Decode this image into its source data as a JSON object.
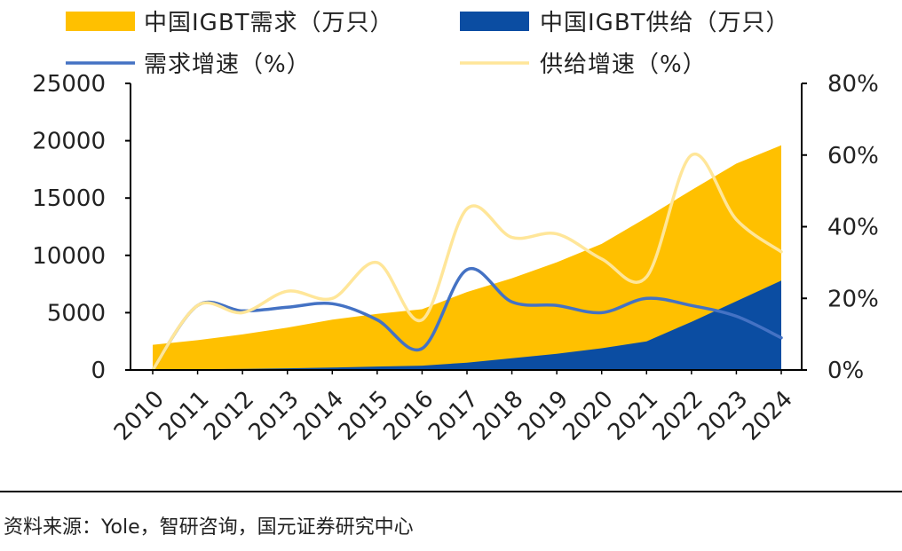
{
  "chart_data": {
    "type": "area",
    "categories": [
      "2010",
      "2011",
      "2012",
      "2013",
      "2014",
      "2015",
      "2016",
      "2017",
      "2018",
      "2019",
      "2020",
      "2021",
      "2022",
      "2023",
      "2024"
    ],
    "y_left": {
      "lim": [
        0,
        25000
      ],
      "ticks": [
        "0",
        "5000",
        "10000",
        "15000",
        "20000",
        "25000"
      ]
    },
    "y_right": {
      "lim": [
        0,
        0.8
      ],
      "ticks": [
        "0%",
        "20%",
        "40%",
        "60%",
        "80%"
      ]
    },
    "series": [
      {
        "name": "中国IGBT需求（万只）",
        "kind": "area",
        "axis": "left",
        "color": "#FFC000",
        "values": [
          2200,
          2600,
          3100,
          3700,
          4400,
          4900,
          5300,
          6800,
          8000,
          9400,
          11000,
          13300,
          15700,
          18000,
          19600
        ]
      },
      {
        "name": "中国IGBT供给（万只）",
        "kind": "area",
        "axis": "left",
        "color": "#0B4DA2",
        "values": [
          50,
          70,
          100,
          150,
          210,
          300,
          380,
          640,
          1020,
          1420,
          1900,
          2500,
          4200,
          6000,
          7800
        ]
      },
      {
        "name": "需求增速（%）",
        "kind": "line",
        "axis": "right",
        "color": "#4472C4",
        "values": [
          0.0,
          0.18,
          0.165,
          0.175,
          0.185,
          0.14,
          0.06,
          0.28,
          0.19,
          0.18,
          0.16,
          0.2,
          0.18,
          0.15,
          0.09
        ]
      },
      {
        "name": "供给增速（%）",
        "kind": "line",
        "axis": "right",
        "color": "#FFE699",
        "values": [
          0.0,
          0.18,
          0.16,
          0.22,
          0.2,
          0.3,
          0.14,
          0.45,
          0.37,
          0.38,
          0.31,
          0.26,
          0.6,
          0.42,
          0.33
        ]
      }
    ]
  },
  "source": "资料来源：Yole，智研咨询，国元证券研究中心"
}
